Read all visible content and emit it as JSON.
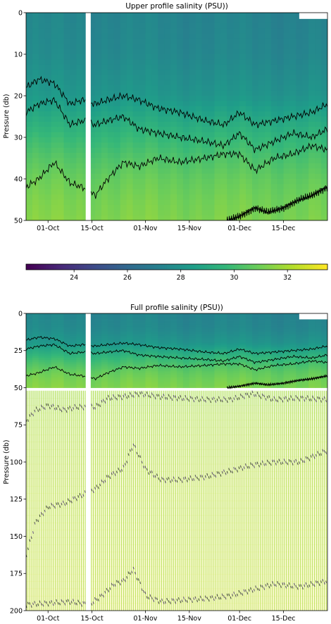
{
  "colors": {
    "viridis": [
      "#440154",
      "#482878",
      "#3e4a89",
      "#31688e",
      "#26828e",
      "#1f9e89",
      "#35b779",
      "#6ece58",
      "#b5de2b",
      "#fde725"
    ],
    "contour_line": "#000000",
    "deep_contour": "#5a5a5a"
  },
  "chart_data": [
    {
      "type": "heatmap",
      "title": "Upper profile salinity (PSU))",
      "ylabel": "Pressure (db)",
      "xlabel": "",
      "ylim": [
        50,
        0
      ],
      "yticks": [
        0,
        10,
        20,
        30,
        40,
        50
      ],
      "xlim": [
        "2019-09-24",
        "2019-12-29"
      ],
      "xticks": [
        {
          "date": "2019-10-01",
          "label": "01-Oct"
        },
        {
          "date": "2019-10-15",
          "label": "15-Oct"
        },
        {
          "date": "2019-11-01",
          "label": "01-Nov"
        },
        {
          "date": "2019-11-15",
          "label": "15-Nov"
        },
        {
          "date": "2019-12-01",
          "label": "01-Dec"
        },
        {
          "date": "2019-12-15",
          "label": "15-Dec"
        }
      ],
      "data_gap": [
        "2019-10-13",
        "2019-10-14"
      ],
      "salinity_profile": {
        "pressure": [
          0,
          10,
          20,
          25,
          30,
          35,
          40,
          45,
          50
        ],
        "salinity": [
          27.4,
          27.6,
          28.2,
          29.0,
          29.8,
          30.4,
          30.9,
          31.2,
          31.4
        ]
      },
      "contours": [
        {
          "level": 28,
          "x": [
            "2019-09-24",
            "2019-09-28",
            "2019-10-03",
            "2019-10-08",
            "2019-10-12",
            "2019-10-16",
            "2019-10-20",
            "2019-10-25",
            "2019-10-30",
            "2019-11-05",
            "2019-11-12",
            "2019-11-20",
            "2019-11-26",
            "2019-12-01",
            "2019-12-06",
            "2019-12-12",
            "2019-12-18",
            "2019-12-24",
            "2019-12-29"
          ],
          "y": [
            18,
            16,
            17,
            22,
            21,
            22,
            21,
            20,
            21,
            23,
            24,
            26,
            27,
            24,
            27,
            26,
            25,
            24,
            22
          ]
        },
        {
          "level": 29,
          "x": [
            "2019-09-24",
            "2019-09-28",
            "2019-10-03",
            "2019-10-08",
            "2019-10-12",
            "2019-10-16",
            "2019-10-20",
            "2019-10-25",
            "2019-10-30",
            "2019-11-05",
            "2019-11-12",
            "2019-11-20",
            "2019-11-26",
            "2019-12-01",
            "2019-12-06",
            "2019-12-12",
            "2019-12-18",
            "2019-12-24",
            "2019-12-29"
          ],
          "y": [
            24,
            22,
            21,
            27,
            26,
            27,
            26,
            25,
            28,
            29,
            30,
            31,
            32,
            29,
            33,
            31,
            29,
            30,
            28
          ]
        },
        {
          "level": 30,
          "x": [
            "2019-09-24",
            "2019-09-28",
            "2019-10-03",
            "2019-10-08",
            "2019-10-12",
            "2019-10-16",
            "2019-10-20",
            "2019-10-25",
            "2019-10-30",
            "2019-11-05",
            "2019-11-12",
            "2019-11-20",
            "2019-11-26",
            "2019-12-01",
            "2019-12-06",
            "2019-12-12",
            "2019-12-18",
            "2019-12-24",
            "2019-12-29"
          ],
          "y": [
            42,
            40,
            36,
            41,
            42,
            44,
            40,
            36,
            37,
            35,
            36,
            35,
            34,
            34,
            38,
            35,
            34,
            32,
            33
          ]
        },
        {
          "level": 31,
          "x": [
            "2019-11-27",
            "2019-12-01",
            "2019-12-06",
            "2019-12-10",
            "2019-12-15",
            "2019-12-20",
            "2019-12-24",
            "2019-12-29"
          ],
          "y": [
            50,
            49,
            47,
            48,
            47,
            45,
            44,
            42
          ]
        }
      ]
    },
    {
      "type": "colorbar",
      "ticks": [
        24,
        26,
        28,
        30,
        32
      ],
      "range": [
        22.2,
        33.5
      ]
    },
    {
      "type": "heatmap",
      "title": "Full profile salinity (PSU))",
      "ylabel": "Pressure (db)",
      "xlabel": "",
      "ylim": [
        200,
        0
      ],
      "yticks": [
        0,
        25,
        50,
        75,
        100,
        125,
        150,
        175,
        200
      ],
      "xlim": [
        "2019-09-24",
        "2019-12-29"
      ],
      "xticks": [
        {
          "date": "2019-10-01",
          "label": "01-Oct"
        },
        {
          "date": "2019-10-15",
          "label": "15-Oct"
        },
        {
          "date": "2019-11-01",
          "label": "01-Nov"
        },
        {
          "date": "2019-11-15",
          "label": "15-Nov"
        },
        {
          "date": "2019-12-01",
          "label": "01-Dec"
        },
        {
          "date": "2019-12-15",
          "label": "15-Dec"
        }
      ],
      "data_gap": [
        "2019-10-13",
        "2019-10-14"
      ],
      "deep_profile": {
        "pressure": [
          52,
          75,
          100,
          125,
          150,
          175,
          200
        ],
        "salinity": [
          31.8,
          32.3,
          32.6,
          32.8,
          32.9,
          33.1,
          33.3
        ]
      },
      "deep_contours": [
        {
          "x": [
            "2019-09-24",
            "2019-09-27",
            "2019-10-01",
            "2019-10-06",
            "2019-10-10",
            "2019-10-16",
            "2019-10-20",
            "2019-10-25",
            "2019-10-30",
            "2019-11-05",
            "2019-11-12",
            "2019-11-20",
            "2019-11-28",
            "2019-12-05",
            "2019-12-12",
            "2019-12-20",
            "2019-12-29"
          ],
          "y": [
            72,
            65,
            62,
            65,
            63,
            63,
            57,
            56,
            54,
            56,
            57,
            58,
            58,
            54,
            58,
            57,
            58
          ]
        },
        {
          "x": [
            "2019-09-24",
            "2019-09-27",
            "2019-10-01",
            "2019-10-06",
            "2019-10-10",
            "2019-10-16",
            "2019-10-20",
            "2019-10-25",
            "2019-10-28",
            "2019-11-01",
            "2019-11-06",
            "2019-11-12",
            "2019-11-20",
            "2019-11-28",
            "2019-12-05",
            "2019-12-12",
            "2019-12-20",
            "2019-12-29"
          ],
          "y": [
            162,
            140,
            130,
            128,
            124,
            118,
            110,
            104,
            88,
            105,
            112,
            112,
            110,
            106,
            102,
            100,
            100,
            92
          ]
        },
        {
          "x": [
            "2019-09-24",
            "2019-10-01",
            "2019-10-08",
            "2019-10-14",
            "2019-10-18",
            "2019-10-22",
            "2019-10-25",
            "2019-10-28",
            "2019-11-01",
            "2019-11-06",
            "2019-11-12",
            "2019-11-20",
            "2019-11-28",
            "2019-12-05",
            "2019-12-12",
            "2019-12-20",
            "2019-12-29"
          ],
          "y": [
            196,
            195,
            194,
            196,
            190,
            182,
            180,
            172,
            190,
            194,
            193,
            192,
            190,
            186,
            182,
            184,
            180
          ]
        }
      ]
    }
  ]
}
